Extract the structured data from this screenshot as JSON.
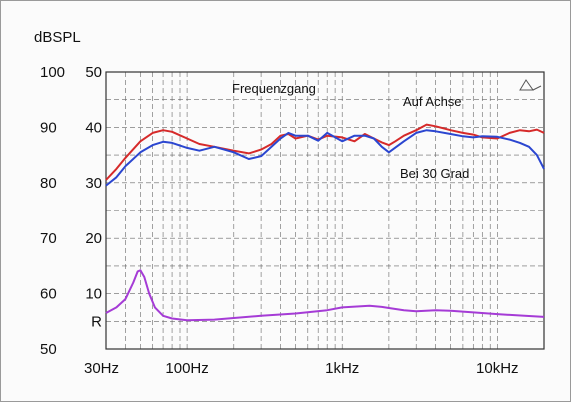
{
  "chart_data": {
    "type": "line",
    "title": "Frequenzgang",
    "ylabel": "dBSPL",
    "x_scale": "log",
    "xlim": [
      30,
      20000
    ],
    "ylim": [
      50,
      100
    ],
    "grid": true,
    "x_tick_labels": [
      {
        "value": 30,
        "label": "30Hz"
      },
      {
        "value": 100,
        "label": "100Hz"
      },
      {
        "value": 1000,
        "label": "1kHz"
      },
      {
        "value": 10000,
        "label": "10kHz"
      }
    ],
    "y_tick_labels": [
      {
        "value": 100,
        "label": "100"
      },
      {
        "value": 90,
        "label": "90"
      },
      {
        "value": 80,
        "label": "80"
      },
      {
        "value": 70,
        "label": "70"
      },
      {
        "value": 60,
        "label": "60"
      },
      {
        "value": 50,
        "label": "50"
      }
    ],
    "y2_tick_labels": [
      {
        "value": 100,
        "label": "50"
      },
      {
        "value": 90,
        "label": "40"
      },
      {
        "value": 80,
        "label": "30"
      },
      {
        "value": 70,
        "label": "20"
      },
      {
        "value": 60,
        "label": "10"
      },
      {
        "value": 55,
        "label": "R"
      }
    ],
    "series": [
      {
        "name": "Auf Achse",
        "color": "#d62a2a",
        "points": [
          [
            30,
            80.5
          ],
          [
            35,
            82.5
          ],
          [
            40,
            84.5
          ],
          [
            50,
            87.5
          ],
          [
            60,
            89
          ],
          [
            70,
            89.5
          ],
          [
            80,
            89.2
          ],
          [
            100,
            88
          ],
          [
            120,
            87
          ],
          [
            150,
            86.5
          ],
          [
            200,
            85.8
          ],
          [
            250,
            85.3
          ],
          [
            300,
            86
          ],
          [
            350,
            87
          ],
          [
            400,
            88.5
          ],
          [
            450,
            88.8
          ],
          [
            500,
            88
          ],
          [
            600,
            88.5
          ],
          [
            700,
            87.8
          ],
          [
            800,
            88.5
          ],
          [
            1000,
            88.2
          ],
          [
            1200,
            87.5
          ],
          [
            1400,
            88.8
          ],
          [
            1600,
            88
          ],
          [
            1800,
            87.3
          ],
          [
            2000,
            86.8
          ],
          [
            2200,
            87.5
          ],
          [
            2500,
            88.5
          ],
          [
            3000,
            89.5
          ],
          [
            3500,
            90.5
          ],
          [
            4000,
            90.2
          ],
          [
            5000,
            89.5
          ],
          [
            6000,
            89
          ],
          [
            7000,
            88.7
          ],
          [
            8000,
            88.2
          ],
          [
            10000,
            88
          ],
          [
            12000,
            89
          ],
          [
            14000,
            89.5
          ],
          [
            16000,
            89.3
          ],
          [
            18000,
            89.6
          ],
          [
            20000,
            89
          ]
        ]
      },
      {
        "name": "Bei 30 Grad",
        "color": "#2b46d0",
        "points": [
          [
            30,
            79.5
          ],
          [
            35,
            81
          ],
          [
            40,
            83
          ],
          [
            50,
            85.5
          ],
          [
            60,
            86.8
          ],
          [
            70,
            87.4
          ],
          [
            80,
            87.2
          ],
          [
            100,
            86.3
          ],
          [
            120,
            85.8
          ],
          [
            150,
            86.5
          ],
          [
            200,
            85.5
          ],
          [
            250,
            84.3
          ],
          [
            300,
            84.8
          ],
          [
            350,
            86.5
          ],
          [
            400,
            88
          ],
          [
            450,
            89
          ],
          [
            500,
            88.5
          ],
          [
            600,
            88.5
          ],
          [
            700,
            87.6
          ],
          [
            800,
            89
          ],
          [
            1000,
            87.5
          ],
          [
            1200,
            88.5
          ],
          [
            1400,
            88.5
          ],
          [
            1600,
            88
          ],
          [
            1800,
            86.5
          ],
          [
            2000,
            85.5
          ],
          [
            2500,
            87.5
          ],
          [
            3000,
            89
          ],
          [
            3500,
            89.5
          ],
          [
            4000,
            89.3
          ],
          [
            5000,
            88.8
          ],
          [
            6000,
            88.4
          ],
          [
            7000,
            88.2
          ],
          [
            8000,
            88.4
          ],
          [
            10000,
            88.3
          ],
          [
            12000,
            87.8
          ],
          [
            14000,
            87.2
          ],
          [
            16000,
            86.5
          ],
          [
            18000,
            85
          ],
          [
            20000,
            82.5
          ]
        ]
      },
      {
        "name": "R",
        "color": "#a53bd6",
        "points": [
          [
            30,
            56.5
          ],
          [
            35,
            57.5
          ],
          [
            40,
            59
          ],
          [
            45,
            62
          ],
          [
            48,
            64
          ],
          [
            50,
            64.2
          ],
          [
            53,
            63
          ],
          [
            57,
            60
          ],
          [
            62,
            57.5
          ],
          [
            70,
            56
          ],
          [
            80,
            55.5
          ],
          [
            100,
            55.2
          ],
          [
            150,
            55.3
          ],
          [
            200,
            55.6
          ],
          [
            300,
            56
          ],
          [
            500,
            56.4
          ],
          [
            800,
            57
          ],
          [
            1000,
            57.5
          ],
          [
            1500,
            57.8
          ],
          [
            1800,
            57.6
          ],
          [
            2000,
            57.4
          ],
          [
            2500,
            57
          ],
          [
            3000,
            56.8
          ],
          [
            4000,
            57
          ],
          [
            5000,
            56.9
          ],
          [
            7000,
            56.6
          ],
          [
            10000,
            56.3
          ],
          [
            15000,
            56
          ],
          [
            20000,
            55.8
          ]
        ]
      }
    ],
    "annotations": [
      {
        "text": "Frequenzgang"
      },
      {
        "text": "Auf Achse"
      },
      {
        "text": "Bei 30 Grad"
      }
    ]
  }
}
